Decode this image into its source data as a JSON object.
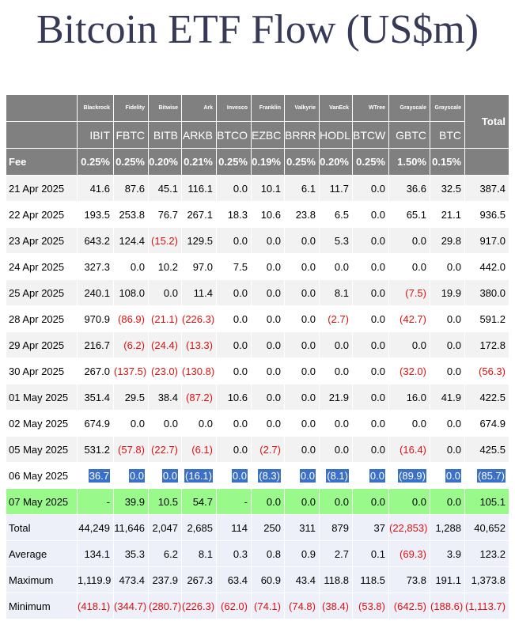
{
  "header": {
    "title": "Bitcoin ETF Flow (US$m)"
  },
  "table": {
    "issuers": [
      "Blackrock",
      "Fidelity",
      "Bitwise",
      "Ark",
      "Invesco",
      "Franklin",
      "Valkyrie",
      "VanEck",
      "WTree",
      "Grayscale",
      "Grayscale"
    ],
    "total_label": "Total",
    "tickers": [
      "IBIT",
      "FBTC",
      "BITB",
      "ARKB",
      "BTCO",
      "EZBC",
      "BRRR",
      "HODL",
      "BTCW",
      "GBTC",
      "BTC"
    ],
    "fee_label": "Fee",
    "fees": [
      "0.25%",
      "0.25%",
      "0.20%",
      "0.21%",
      "0.25%",
      "0.19%",
      "0.25%",
      "0.20%",
      "0.25%",
      "1.50%",
      "0.15%"
    ],
    "rows": [
      [
        "21 Apr 2025",
        "41.6",
        "87.6",
        "45.1",
        "116.1",
        "0.0",
        "10.1",
        "6.1",
        "11.7",
        "0.0",
        "36.6",
        "32.5",
        "387.4"
      ],
      [
        "22 Apr 2025",
        "193.5",
        "253.8",
        "76.7",
        "267.1",
        "18.3",
        "10.6",
        "23.8",
        "6.5",
        "0.0",
        "65.1",
        "21.1",
        "936.5"
      ],
      [
        "23 Apr 2025",
        "643.2",
        "124.4",
        "(15.2)",
        "129.5",
        "0.0",
        "0.0",
        "0.0",
        "5.3",
        "0.0",
        "0.0",
        "29.8",
        "917.0"
      ],
      [
        "24 Apr 2025",
        "327.3",
        "0.0",
        "10.2",
        "97.0",
        "7.5",
        "0.0",
        "0.0",
        "0.0",
        "0.0",
        "0.0",
        "0.0",
        "442.0"
      ],
      [
        "25 Apr 2025",
        "240.1",
        "108.0",
        "0.0",
        "11.4",
        "0.0",
        "0.0",
        "0.0",
        "8.1",
        "0.0",
        "(7.5)",
        "19.9",
        "380.0"
      ],
      [
        "28 Apr 2025",
        "970.9",
        "(86.9)",
        "(21.1)",
        "(226.3)",
        "0.0",
        "0.0",
        "0.0",
        "(2.7)",
        "0.0",
        "(42.7)",
        "0.0",
        "591.2"
      ],
      [
        "29 Apr 2025",
        "216.7",
        "(6.2)",
        "(24.4)",
        "(13.3)",
        "0.0",
        "0.0",
        "0.0",
        "0.0",
        "0.0",
        "0.0",
        "0.0",
        "172.8"
      ],
      [
        "30 Apr 2025",
        "267.0",
        "(137.5)",
        "(23.0)",
        "(130.8)",
        "0.0",
        "0.0",
        "0.0",
        "0.0",
        "0.0",
        "(32.0)",
        "0.0",
        "(56.3)"
      ],
      [
        "01 May 2025",
        "351.4",
        "29.5",
        "38.4",
        "(87.2)",
        "10.6",
        "0.0",
        "0.0",
        "21.9",
        "0.0",
        "16.0",
        "41.9",
        "422.5"
      ],
      [
        "02 May 2025",
        "674.9",
        "0.0",
        "0.0",
        "0.0",
        "0.0",
        "0.0",
        "0.0",
        "0.0",
        "0.0",
        "0.0",
        "0.0",
        "674.9"
      ],
      [
        "05 May 2025",
        "531.2",
        "(57.8)",
        "(22.7)",
        "(6.1)",
        "0.0",
        "(2.7)",
        "0.0",
        "0.0",
        "0.0",
        "(16.4)",
        "0.0",
        "425.5"
      ],
      [
        "06 May 2025",
        "36.7",
        "0.0",
        "0.0",
        "(16.1)",
        "0.0",
        "(8.3)",
        "0.0",
        "(8.1)",
        "0.0",
        "(89.9)",
        "0.0",
        "(85.7)"
      ],
      [
        "07 May 2025",
        "-",
        "39.9",
        "10.5",
        "54.7",
        "-",
        "0.0",
        "0.0",
        "0.0",
        "0.0",
        "0.0",
        "0.0",
        "105.1"
      ]
    ],
    "summary": [
      [
        "Total",
        "44,249",
        "11,646",
        "2,047",
        "2,685",
        "114",
        "250",
        "311",
        "879",
        "37",
        "(22,853)",
        "1,288",
        "40,652"
      ],
      [
        "Average",
        "134.1",
        "35.3",
        "6.2",
        "8.1",
        "0.3",
        "0.8",
        "0.9",
        "2.7",
        "0.1",
        "(69.3)",
        "3.9",
        "123.2"
      ],
      [
        "Maximum",
        "1,119.9",
        "473.4",
        "237.9",
        "267.3",
        "63.4",
        "60.9",
        "43.4",
        "118.8",
        "118.5",
        "73.8",
        "191.1",
        "1,373.8"
      ],
      [
        "Minimum",
        "(418.1)",
        "(344.7)",
        "(280.7)",
        "(226.3)",
        "(62.0)",
        "(74.1)",
        "(74.8)",
        "(38.4)",
        "(53.8)",
        "(642.5)",
        "(188.6)",
        "(1,113.7)"
      ]
    ]
  }
}
